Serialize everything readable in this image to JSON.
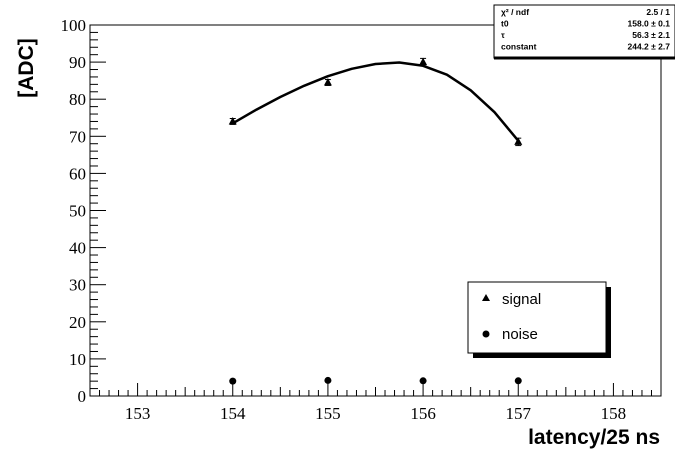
{
  "chart_data": {
    "type": "scatter",
    "xlabel": "latency/25 ns",
    "ylabel": "[ADC]",
    "xlim": [
      152.5,
      158.5
    ],
    "ylim": [
      0,
      100
    ],
    "x_ticks": [
      153,
      154,
      155,
      156,
      157,
      158
    ],
    "y_ticks": [
      0,
      10,
      20,
      30,
      40,
      50,
      60,
      70,
      80,
      90,
      100
    ],
    "grid": false,
    "legend_position": "bottom-right",
    "series": [
      {
        "name": "signal",
        "marker": "triangle",
        "x": [
          154,
          155,
          156,
          157
        ],
        "y": [
          74.0,
          84.5,
          90.0,
          68.5
        ],
        "yerr": [
          0.8,
          0.8,
          1.0,
          1.0
        ]
      },
      {
        "name": "noise",
        "marker": "circle",
        "x": [
          154,
          155,
          156,
          157
        ],
        "y": [
          4.0,
          4.2,
          4.1,
          4.1
        ]
      }
    ],
    "fit": {
      "x": [
        154.0,
        154.25,
        154.5,
        154.75,
        155.0,
        155.25,
        155.5,
        155.75,
        156.0,
        156.25,
        156.5,
        156.75,
        157.0
      ],
      "y": [
        73.5,
        77.2,
        80.6,
        83.6,
        86.2,
        88.2,
        89.5,
        89.9,
        89.0,
        86.6,
        82.4,
        76.5,
        68.8
      ]
    },
    "stats": {
      "rows": [
        {
          "label": "χ² / ndf",
          "value": "2.5 / 1"
        },
        {
          "label": "t0",
          "value": "158.0 ±  0.1"
        },
        {
          "label": "τ",
          "value": "56.3 ±  2.1"
        },
        {
          "label": "constant",
          "value": "244.2 ±  2.7"
        }
      ]
    }
  }
}
